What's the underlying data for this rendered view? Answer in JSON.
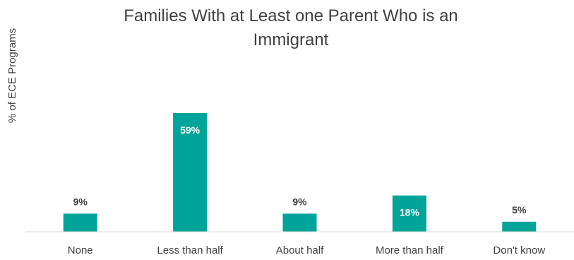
{
  "chart_data": {
    "type": "bar",
    "title_lines": [
      "Families With at Least one Parent Who is an",
      "Immigrant"
    ],
    "ylabel": "% of ECE Programs",
    "xlabel": "",
    "categories": [
      "None",
      "Less than half",
      "About half",
      "More than half",
      "Don't know"
    ],
    "values": [
      9,
      59,
      9,
      18,
      5
    ],
    "data_labels": [
      "9%",
      "59%",
      "9%",
      "18%",
      "5%"
    ],
    "ylim": [
      0,
      65
    ],
    "grid": false,
    "legend": "none",
    "colors": {
      "bar": "#00a499",
      "label_inside": "#ffffff",
      "label_outside": "#404040",
      "axis": "#d9d9d9"
    }
  }
}
